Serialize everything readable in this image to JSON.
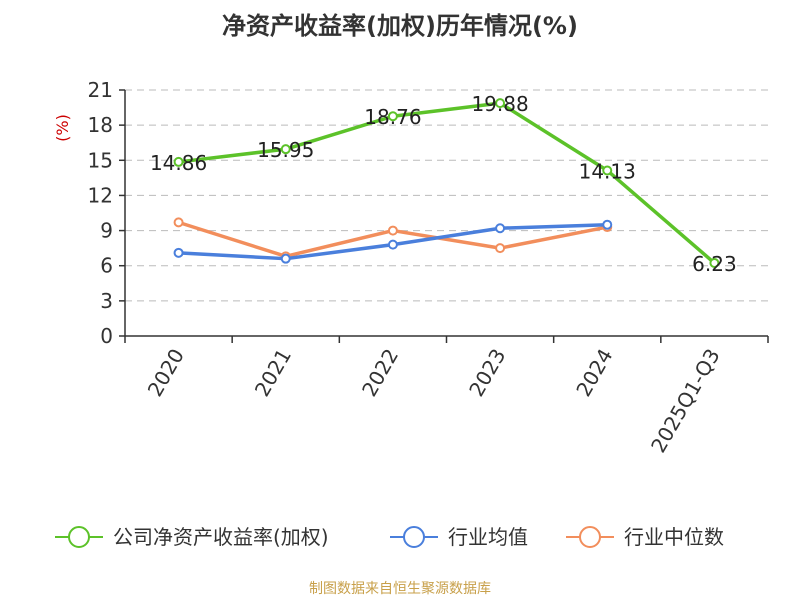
{
  "title": "净资产收益率(加权)历年情况(%)",
  "source": "制图数据来自恒生聚源数据库",
  "chart_data": {
    "type": "line",
    "title": "净资产收益率(加权)历年情况(%)",
    "ylabel": "(%)",
    "ylim": [
      0,
      21
    ],
    "yticks": [
      0,
      3,
      6,
      9,
      12,
      15,
      18,
      21
    ],
    "categories": [
      "2020",
      "2021",
      "2022",
      "2023",
      "2024",
      "2025Q1-Q3"
    ],
    "grid": true,
    "legend_position": "bottom",
    "series": [
      {
        "name": "公司净资产收益率(加权)",
        "color": "#5cc229",
        "values": [
          14.86,
          15.95,
          18.76,
          19.88,
          14.13,
          6.23
        ],
        "labels": [
          "14.86",
          "15.95",
          "18.76",
          "19.88",
          "14.13",
          "6.23"
        ]
      },
      {
        "name": "行业均值",
        "color": "#4a7fdc",
        "values": [
          7.1,
          6.6,
          7.8,
          9.2,
          9.5,
          null
        ]
      },
      {
        "name": "行业中位数",
        "color": "#f28e5c",
        "values": [
          9.7,
          6.8,
          9.0,
          7.5,
          9.3,
          null
        ]
      }
    ]
  }
}
